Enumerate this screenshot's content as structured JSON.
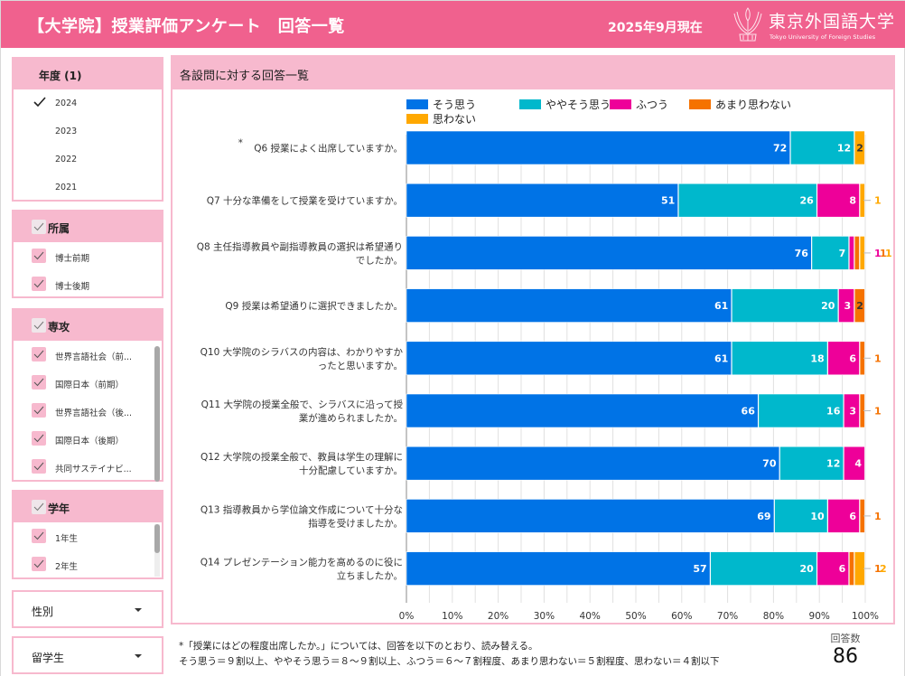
{
  "header": {
    "title": "【大学院】授業評価アンケート　回答一覧",
    "as_of": "2025年9月現在",
    "university_ja": "東京外国語大学",
    "university_en": "Tokyo University of Foreign Studies"
  },
  "filters": {
    "year": {
      "label": "年度 (1)",
      "items": [
        {
          "label": "2024",
          "checked": true
        },
        {
          "label": "2023",
          "checked": false
        },
        {
          "label": "2022",
          "checked": false
        },
        {
          "label": "2021",
          "checked": false
        }
      ]
    },
    "affiliation": {
      "label": "所属",
      "items": [
        {
          "label": "博士前期",
          "checked": true
        },
        {
          "label": "博士後期",
          "checked": true
        }
      ]
    },
    "major": {
      "label": "専攻",
      "items": [
        {
          "label": "世界言語社会（前...",
          "checked": true
        },
        {
          "label": "国際日本（前期）",
          "checked": true
        },
        {
          "label": "世界言語社会（後...",
          "checked": true
        },
        {
          "label": "国際日本（後期）",
          "checked": true
        },
        {
          "label": "共同サステイナビ...",
          "checked": true
        }
      ]
    },
    "grade": {
      "label": "学年",
      "items": [
        {
          "label": "1年生",
          "checked": true
        },
        {
          "label": "2年生",
          "checked": true
        }
      ]
    },
    "gender": {
      "label": "性別"
    },
    "international": {
      "label": "留学生"
    }
  },
  "panel": {
    "title": "各設問に対する回答一覧"
  },
  "chart_data": {
    "type": "bar",
    "orientation": "horizontal",
    "stacked": "percent",
    "title": "各設問に対する回答一覧",
    "xlabel": "",
    "ylabel": "",
    "xlim": [
      0,
      100
    ],
    "x_ticks": [
      "0%",
      "10%",
      "20%",
      "30%",
      "40%",
      "50%",
      "60%",
      "70%",
      "80%",
      "90%",
      "100%"
    ],
    "grid": true,
    "legend_position": "top",
    "categories": [
      {
        "prefix": "*",
        "lines": [
          "Q6 授業によく出席していますか。"
        ]
      },
      {
        "prefix": "",
        "lines": [
          "Q7 十分な準備をして授業を受けていますか。"
        ]
      },
      {
        "prefix": "",
        "lines": [
          "Q8 主任指導教員や副指導教員の選択は希望通り",
          "でしたか。"
        ]
      },
      {
        "prefix": "",
        "lines": [
          "Q9 授業は希望通りに選択できましたか。"
        ]
      },
      {
        "prefix": "",
        "lines": [
          "Q10 大学院のシラバスの内容は、わかりやすか",
          "ったと思いますか。"
        ]
      },
      {
        "prefix": "",
        "lines": [
          "Q11 大学院の授業全般で、シラバスに沿って授",
          "業が進められましたか。"
        ]
      },
      {
        "prefix": "",
        "lines": [
          "Q12 大学院の授業全般で、教員は学生の理解に",
          "十分配慮していますか。"
        ]
      },
      {
        "prefix": "",
        "lines": [
          "Q13 指導教員から学位論文作成について十分な",
          "指導を受けましたか。"
        ]
      },
      {
        "prefix": "",
        "lines": [
          "Q14 プレゼンテーション能力を高めるのに役に",
          "立ちましたか。"
        ]
      }
    ],
    "series": [
      {
        "name": "そう思う",
        "color": "#0073e6",
        "values": [
          72,
          51,
          76,
          61,
          61,
          66,
          70,
          69,
          57
        ]
      },
      {
        "name": "ややそう思う",
        "color": "#00b8cc",
        "values": [
          12,
          26,
          7,
          20,
          18,
          16,
          12,
          10,
          20
        ]
      },
      {
        "name": "ふつう",
        "color": "#ee0099",
        "values": [
          0,
          8,
          1,
          3,
          6,
          3,
          4,
          6,
          6
        ]
      },
      {
        "name": "あまり思わない",
        "color": "#f57200",
        "values": [
          0,
          0,
          1,
          2,
          1,
          1,
          0,
          1,
          1
        ]
      },
      {
        "name": "思わない",
        "color": "#ffa800",
        "values": [
          2,
          1,
          1,
          0,
          0,
          0,
          0,
          0,
          2
        ]
      }
    ]
  },
  "footnote": {
    "line1": "*「授業にはどの程度出席したか。」については、回答を以下のとおり、読み替える。",
    "line2": "そう思う＝９割以上、ややそう思う＝８～９割以上、ふつう＝６～７割程度、あまり思わない＝５割程度、思わない＝４割以下"
  },
  "response_count": {
    "label": "回答数",
    "value": "86"
  }
}
